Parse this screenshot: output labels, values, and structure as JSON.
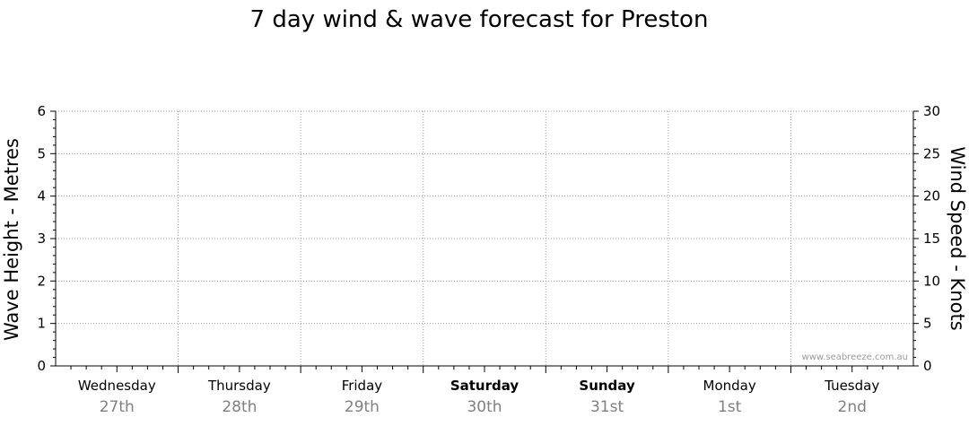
{
  "chart_data": {
    "type": "line",
    "title": "7 day wind & wave forecast for Preston",
    "ylabel_left": "Wave Height - Metres",
    "ylabel_right": "Wind Speed - Knots",
    "ylim_left": [
      0,
      6
    ],
    "ylim_right": [
      0,
      30
    ],
    "yticks_left": [
      "0",
      "1",
      "2",
      "3",
      "4",
      "5",
      "6"
    ],
    "yticks_right": [
      "0",
      "5",
      "10",
      "15",
      "20",
      "25",
      "30"
    ],
    "days": [
      {
        "day": "Wednesday",
        "date": "27th",
        "bold": false
      },
      {
        "day": "Thursday",
        "date": "28th",
        "bold": false
      },
      {
        "day": "Friday",
        "date": "29th",
        "bold": false
      },
      {
        "day": "Saturday",
        "date": "30th",
        "bold": true
      },
      {
        "day": "Sunday",
        "date": "31st",
        "bold": true
      },
      {
        "day": "Monday",
        "date": "1st",
        "bold": false
      },
      {
        "day": "Tuesday",
        "date": "2nd",
        "bold": false
      }
    ],
    "series": [],
    "grid": true,
    "watermark": "www.seabreeze.com.au"
  }
}
